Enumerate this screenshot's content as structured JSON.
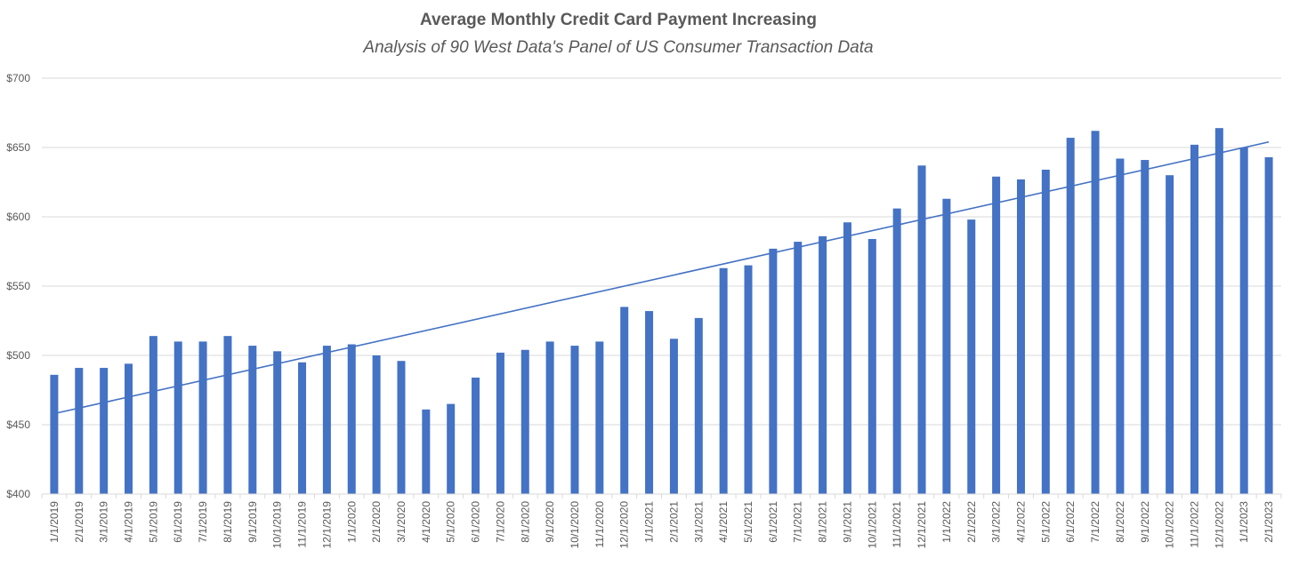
{
  "chart_data": {
    "type": "bar",
    "title": "Average Monthly Credit Card Payment Increasing",
    "subtitle": "Analysis of 90 West Data's Panel of US Consumer Transaction Data",
    "xlabel": "",
    "ylabel": "",
    "ylim": [
      400,
      700
    ],
    "yticks": [
      400,
      450,
      500,
      550,
      600,
      650,
      700
    ],
    "ytick_labels": [
      "$400",
      "$450",
      "$500",
      "$550",
      "$600",
      "$650",
      "$700"
    ],
    "grid": true,
    "legend": "none",
    "bar_color": "#4472C4",
    "trendline_color": "#4472C4",
    "gridline_color": "#D9D9D9",
    "trendline": {
      "type": "linear",
      "start": 458,
      "end": 654
    },
    "categories": [
      "1/1/2019",
      "2/1/2019",
      "3/1/2019",
      "4/1/2019",
      "5/1/2019",
      "6/1/2019",
      "7/1/2019",
      "8/1/2019",
      "9/1/2019",
      "10/1/2019",
      "11/1/2019",
      "12/1/2019",
      "1/1/2020",
      "2/1/2020",
      "3/1/2020",
      "4/1/2020",
      "5/1/2020",
      "6/1/2020",
      "7/1/2020",
      "8/1/2020",
      "9/1/2020",
      "10/1/2020",
      "11/1/2020",
      "12/1/2020",
      "1/1/2021",
      "2/1/2021",
      "3/1/2021",
      "4/1/2021",
      "5/1/2021",
      "6/1/2021",
      "7/1/2021",
      "8/1/2021",
      "9/1/2021",
      "10/1/2021",
      "11/1/2021",
      "12/1/2021",
      "1/1/2022",
      "2/1/2022",
      "3/1/2022",
      "4/1/2022",
      "5/1/2022",
      "6/1/2022",
      "7/1/2022",
      "8/1/2022",
      "9/1/2022",
      "10/1/2022",
      "11/1/2022",
      "12/1/2022",
      "1/1/2023",
      "2/1/2023"
    ],
    "values": [
      486,
      491,
      491,
      494,
      514,
      510,
      510,
      514,
      507,
      503,
      495,
      507,
      508,
      500,
      496,
      461,
      465,
      484,
      502,
      504,
      510,
      507,
      510,
      535,
      532,
      512,
      527,
      563,
      565,
      577,
      582,
      586,
      596,
      584,
      606,
      637,
      613,
      598,
      629,
      627,
      634,
      657,
      662,
      642,
      641,
      630,
      652,
      664,
      650,
      643
    ]
  }
}
